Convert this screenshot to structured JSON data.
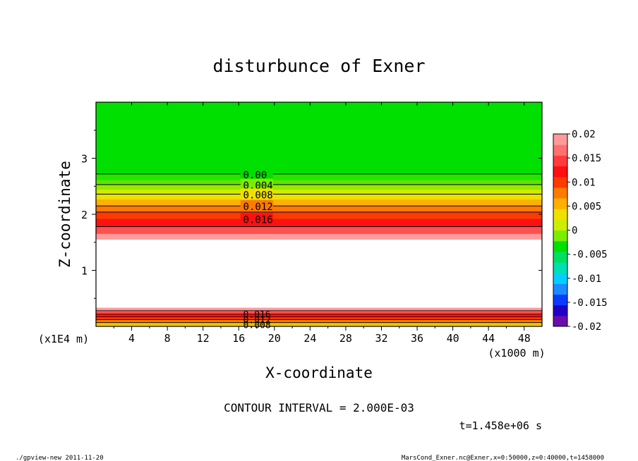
{
  "chart_data": {
    "type": "contour",
    "title": "disturbunce of Exner",
    "xlabel": "X-coordinate",
    "ylabel": "Z-coordinate",
    "x_unit": "(x1000 m)",
    "y_unit": "(x1E4 m)",
    "xlim": [
      0,
      50
    ],
    "ylim": [
      0,
      4
    ],
    "x_ticks": [
      "4",
      "8",
      "12",
      "16",
      "20",
      "24",
      "28",
      "32",
      "36",
      "40",
      "44",
      "48"
    ],
    "y_ticks": [
      "1",
      "2",
      "3"
    ],
    "contour_labels": [
      "0.00",
      "0.004",
      "0.008",
      "0.012",
      "0.016"
    ],
    "bottom_contour_labels": [
      "0.016",
      "0.012",
      "0.008"
    ],
    "colorbar": {
      "ticks": [
        "0.02",
        "0.015",
        "0.01",
        "0.005",
        "0",
        "-0.005",
        "-0.01",
        "-0.015",
        "-0.02"
      ],
      "range": [
        -0.02,
        0.02
      ]
    },
    "contour_interval": "CONTOUR INTERVAL = 2.000E-03",
    "time_label": "t=1.458e+06 s"
  },
  "footer": {
    "left": "./gpview-new  2011-11-20",
    "right": "MarsCond_Exner.nc@Exner,x=0:50000,z=0:40000,t=1458000"
  }
}
